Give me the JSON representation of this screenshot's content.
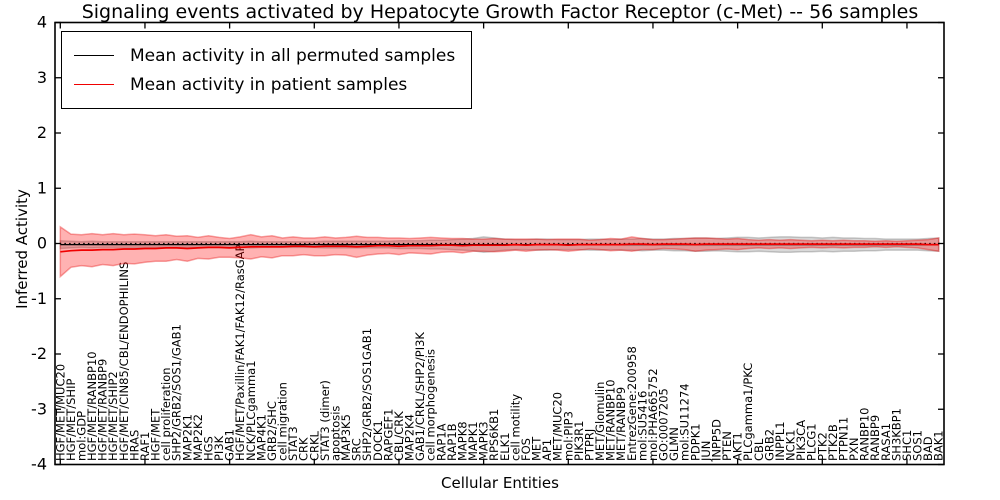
{
  "figure": {
    "title": "Signaling events activated by Hepatocyte Growth Factor Receptor (c-Met) -- 56 samples",
    "xlabel": "Cellular Entities",
    "ylabel": "Inferred Activity"
  },
  "legend": {
    "items": [
      {
        "label": "Mean activity in all permuted samples",
        "color": "#000000"
      },
      {
        "label": "Mean activity in patient samples",
        "color": "#f00000"
      }
    ]
  },
  "chart_data": {
    "type": "line",
    "title": "Signaling events activated by Hepatocyte Growth Factor Receptor (c-Met) -- 56 samples",
    "xlabel": "Cellular Entities",
    "ylabel": "Inferred Activity",
    "ylim": [
      -4,
      4
    ],
    "yticks": [
      "4",
      "3",
      "2",
      "1",
      "0",
      "-1",
      "-2",
      "-3",
      "-4"
    ],
    "ytick_values": [
      4,
      3,
      2,
      1,
      0,
      -1,
      -2,
      -3,
      -4
    ],
    "xtick_step": 8,
    "grid": false,
    "zero_line_style": "dotted",
    "legend_position": "upper left",
    "categories": [
      "HGF/MET/MUC20",
      "HGF/MET/SHIP",
      "mol:GDP",
      "HGF/MET/RANBP10",
      "HGF/MET/RANBP9",
      "HGF/MET/SHIP2",
      "HGF/MET/CIN85/CBL/ENDOPHILINS",
      "HRAS",
      "RAF1",
      "HGF/MET",
      "cell proliferation",
      "SHP2/GRB2/SOS1/GAB1",
      "MAP2K1",
      "MAP2K2",
      "HGS",
      "PI3K",
      "GAB1",
      "HGF/MET/Paxillin/FAK1/FAK12/RasGAP",
      "NCK/PLCgamma1",
      "MAP4K1",
      "GRB2/SHC",
      "cell migration",
      "STAT3",
      "CRK",
      "CRKL",
      "STAT3 (dimer)",
      "apoptosis",
      "MAP3K5",
      "SRC",
      "SHP2/GRB2/SOS1GAB1",
      "DOCK1",
      "RAPGEF1",
      "CBL/CRK",
      "MAP2K4",
      "GAB1/CRKL/SHP2/PI3K",
      "cell morphogenesis",
      "RAP1A",
      "RAP1B",
      "MAPK8",
      "MAPK1",
      "MAPK3",
      "RPS6KB1",
      "ELK1",
      "cell motility",
      "FOS",
      "MET",
      "AP1",
      "MET/MUC20",
      "mol:PIP3",
      "PIK3R1",
      "PTPRJ",
      "MET/Glomulin",
      "MET/RANBP10",
      "MET/RANBP9",
      "EntrezGene:200958",
      "mol:SU5416",
      "mol:PHA665752",
      "GO:0007205",
      "GLMN",
      "mol:SU11274",
      "PDPK1",
      "JUN",
      "INPP5D",
      "PTEN",
      "AKT1",
      "PLCgamma1/PKC",
      "CBL",
      "GRB2",
      "INPPL1",
      "NCK1",
      "PIK3CA",
      "PLCG1",
      "PTK2",
      "PTK2B",
      "PTPN11",
      "PXN",
      "RANBP10",
      "RANBP9",
      "RASA1",
      "SH3KBP1",
      "SHC1",
      "SOS1",
      "BAD",
      "BAK1"
    ],
    "series": [
      {
        "name": "Mean activity in all permuted samples",
        "color": "#000000",
        "band_fill": "rgba(128,128,128,0.30)",
        "band_edge": "rgba(110,110,110,0.35)",
        "values": [
          -0.02,
          -0.02,
          -0.02,
          -0.02,
          -0.02,
          -0.02,
          -0.02,
          -0.02,
          -0.02,
          -0.02,
          -0.02,
          -0.02,
          -0.02,
          -0.02,
          -0.02,
          -0.02,
          -0.02,
          -0.02,
          -0.02,
          -0.02,
          -0.02,
          -0.02,
          -0.02,
          -0.02,
          -0.02,
          -0.02,
          -0.02,
          -0.02,
          -0.02,
          -0.02,
          -0.02,
          -0.02,
          -0.02,
          -0.02,
          -0.02,
          -0.02,
          -0.02,
          -0.02,
          -0.02,
          -0.02,
          -0.02,
          -0.02,
          -0.02,
          -0.02,
          -0.02,
          -0.02,
          -0.02,
          -0.02,
          -0.02,
          -0.02,
          -0.02,
          -0.02,
          -0.02,
          -0.02,
          -0.02,
          -0.02,
          -0.02,
          -0.02,
          -0.02,
          -0.02,
          -0.02,
          -0.02,
          -0.02,
          -0.02,
          -0.02,
          -0.02,
          -0.02,
          -0.02,
          -0.02,
          -0.02,
          -0.02,
          -0.02,
          -0.02,
          -0.02,
          -0.02,
          -0.02,
          -0.02,
          -0.02,
          -0.02,
          -0.02,
          -0.02,
          -0.02,
          -0.02,
          -0.02
        ],
        "band_halfwidth": [
          0.07,
          0.06,
          0.05,
          0.06,
          0.05,
          0.05,
          0.05,
          0.05,
          0.05,
          0.05,
          0.05,
          0.05,
          0.05,
          0.05,
          0.05,
          0.05,
          0.05,
          0.05,
          0.06,
          0.05,
          0.05,
          0.05,
          0.05,
          0.05,
          0.05,
          0.06,
          0.06,
          0.06,
          0.06,
          0.06,
          0.06,
          0.06,
          0.07,
          0.07,
          0.07,
          0.08,
          0.08,
          0.09,
          0.1,
          0.11,
          0.14,
          0.12,
          0.1,
          0.09,
          0.09,
          0.1,
          0.1,
          0.09,
          0.09,
          0.09,
          0.1,
          0.1,
          0.09,
          0.1,
          0.1,
          0.11,
          0.1,
          0.1,
          0.11,
          0.11,
          0.12,
          0.12,
          0.11,
          0.12,
          0.13,
          0.13,
          0.12,
          0.13,
          0.14,
          0.14,
          0.13,
          0.13,
          0.12,
          0.13,
          0.12,
          0.12,
          0.11,
          0.11,
          0.1,
          0.1,
          0.1,
          0.1,
          0.11,
          0.12
        ]
      },
      {
        "name": "Mean activity in patient samples",
        "color": "#f00000",
        "band_fill": "rgba(255,0,0,0.30)",
        "band_edge": "rgba(230,0,0,0.35)",
        "values": [
          -0.15,
          -0.13,
          -0.12,
          -0.12,
          -0.11,
          -0.11,
          -0.1,
          -0.1,
          -0.09,
          -0.09,
          -0.08,
          -0.08,
          -0.09,
          -0.08,
          -0.07,
          -0.07,
          -0.08,
          -0.07,
          -0.06,
          -0.06,
          -0.06,
          -0.06,
          -0.05,
          -0.05,
          -0.06,
          -0.05,
          -0.05,
          -0.05,
          -0.06,
          -0.05,
          -0.04,
          -0.04,
          -0.05,
          -0.04,
          -0.04,
          -0.04,
          -0.03,
          -0.03,
          -0.04,
          -0.03,
          -0.03,
          -0.03,
          -0.03,
          -0.02,
          -0.03,
          -0.02,
          -0.02,
          -0.02,
          -0.03,
          -0.02,
          -0.02,
          -0.02,
          -0.02,
          -0.02,
          -0.01,
          -0.01,
          -0.02,
          -0.01,
          -0.01,
          -0.01,
          -0.02,
          -0.01,
          -0.01,
          -0.01,
          -0.01,
          -0.01,
          -0.01,
          -0.01,
          -0.01,
          -0.01,
          -0.01,
          -0.01,
          -0.01,
          -0.01,
          -0.01,
          -0.01,
          -0.01,
          -0.01,
          -0.01,
          -0.01,
          -0.01,
          -0.01,
          -0.02,
          -0.02
        ],
        "band_halfwidth": [
          0.45,
          0.3,
          0.28,
          0.3,
          0.27,
          0.29,
          0.26,
          0.27,
          0.25,
          0.23,
          0.24,
          0.21,
          0.23,
          0.19,
          0.21,
          0.18,
          0.17,
          0.19,
          0.22,
          0.18,
          0.2,
          0.16,
          0.17,
          0.15,
          0.16,
          0.17,
          0.15,
          0.16,
          0.19,
          0.16,
          0.15,
          0.14,
          0.15,
          0.13,
          0.14,
          0.15,
          0.13,
          0.12,
          0.13,
          0.11,
          0.11,
          0.12,
          0.11,
          0.1,
          0.11,
          0.1,
          0.09,
          0.1,
          0.11,
          0.1,
          0.08,
          0.09,
          0.11,
          0.1,
          0.13,
          0.1,
          0.09,
          0.08,
          0.09,
          0.1,
          0.12,
          0.11,
          0.1,
          0.09,
          0.1,
          0.08,
          0.07,
          0.08,
          0.07,
          0.08,
          0.07,
          0.06,
          0.07,
          0.06,
          0.07,
          0.06,
          0.06,
          0.05,
          0.06,
          0.05,
          0.06,
          0.07,
          0.09,
          0.12
        ]
      }
    ]
  }
}
